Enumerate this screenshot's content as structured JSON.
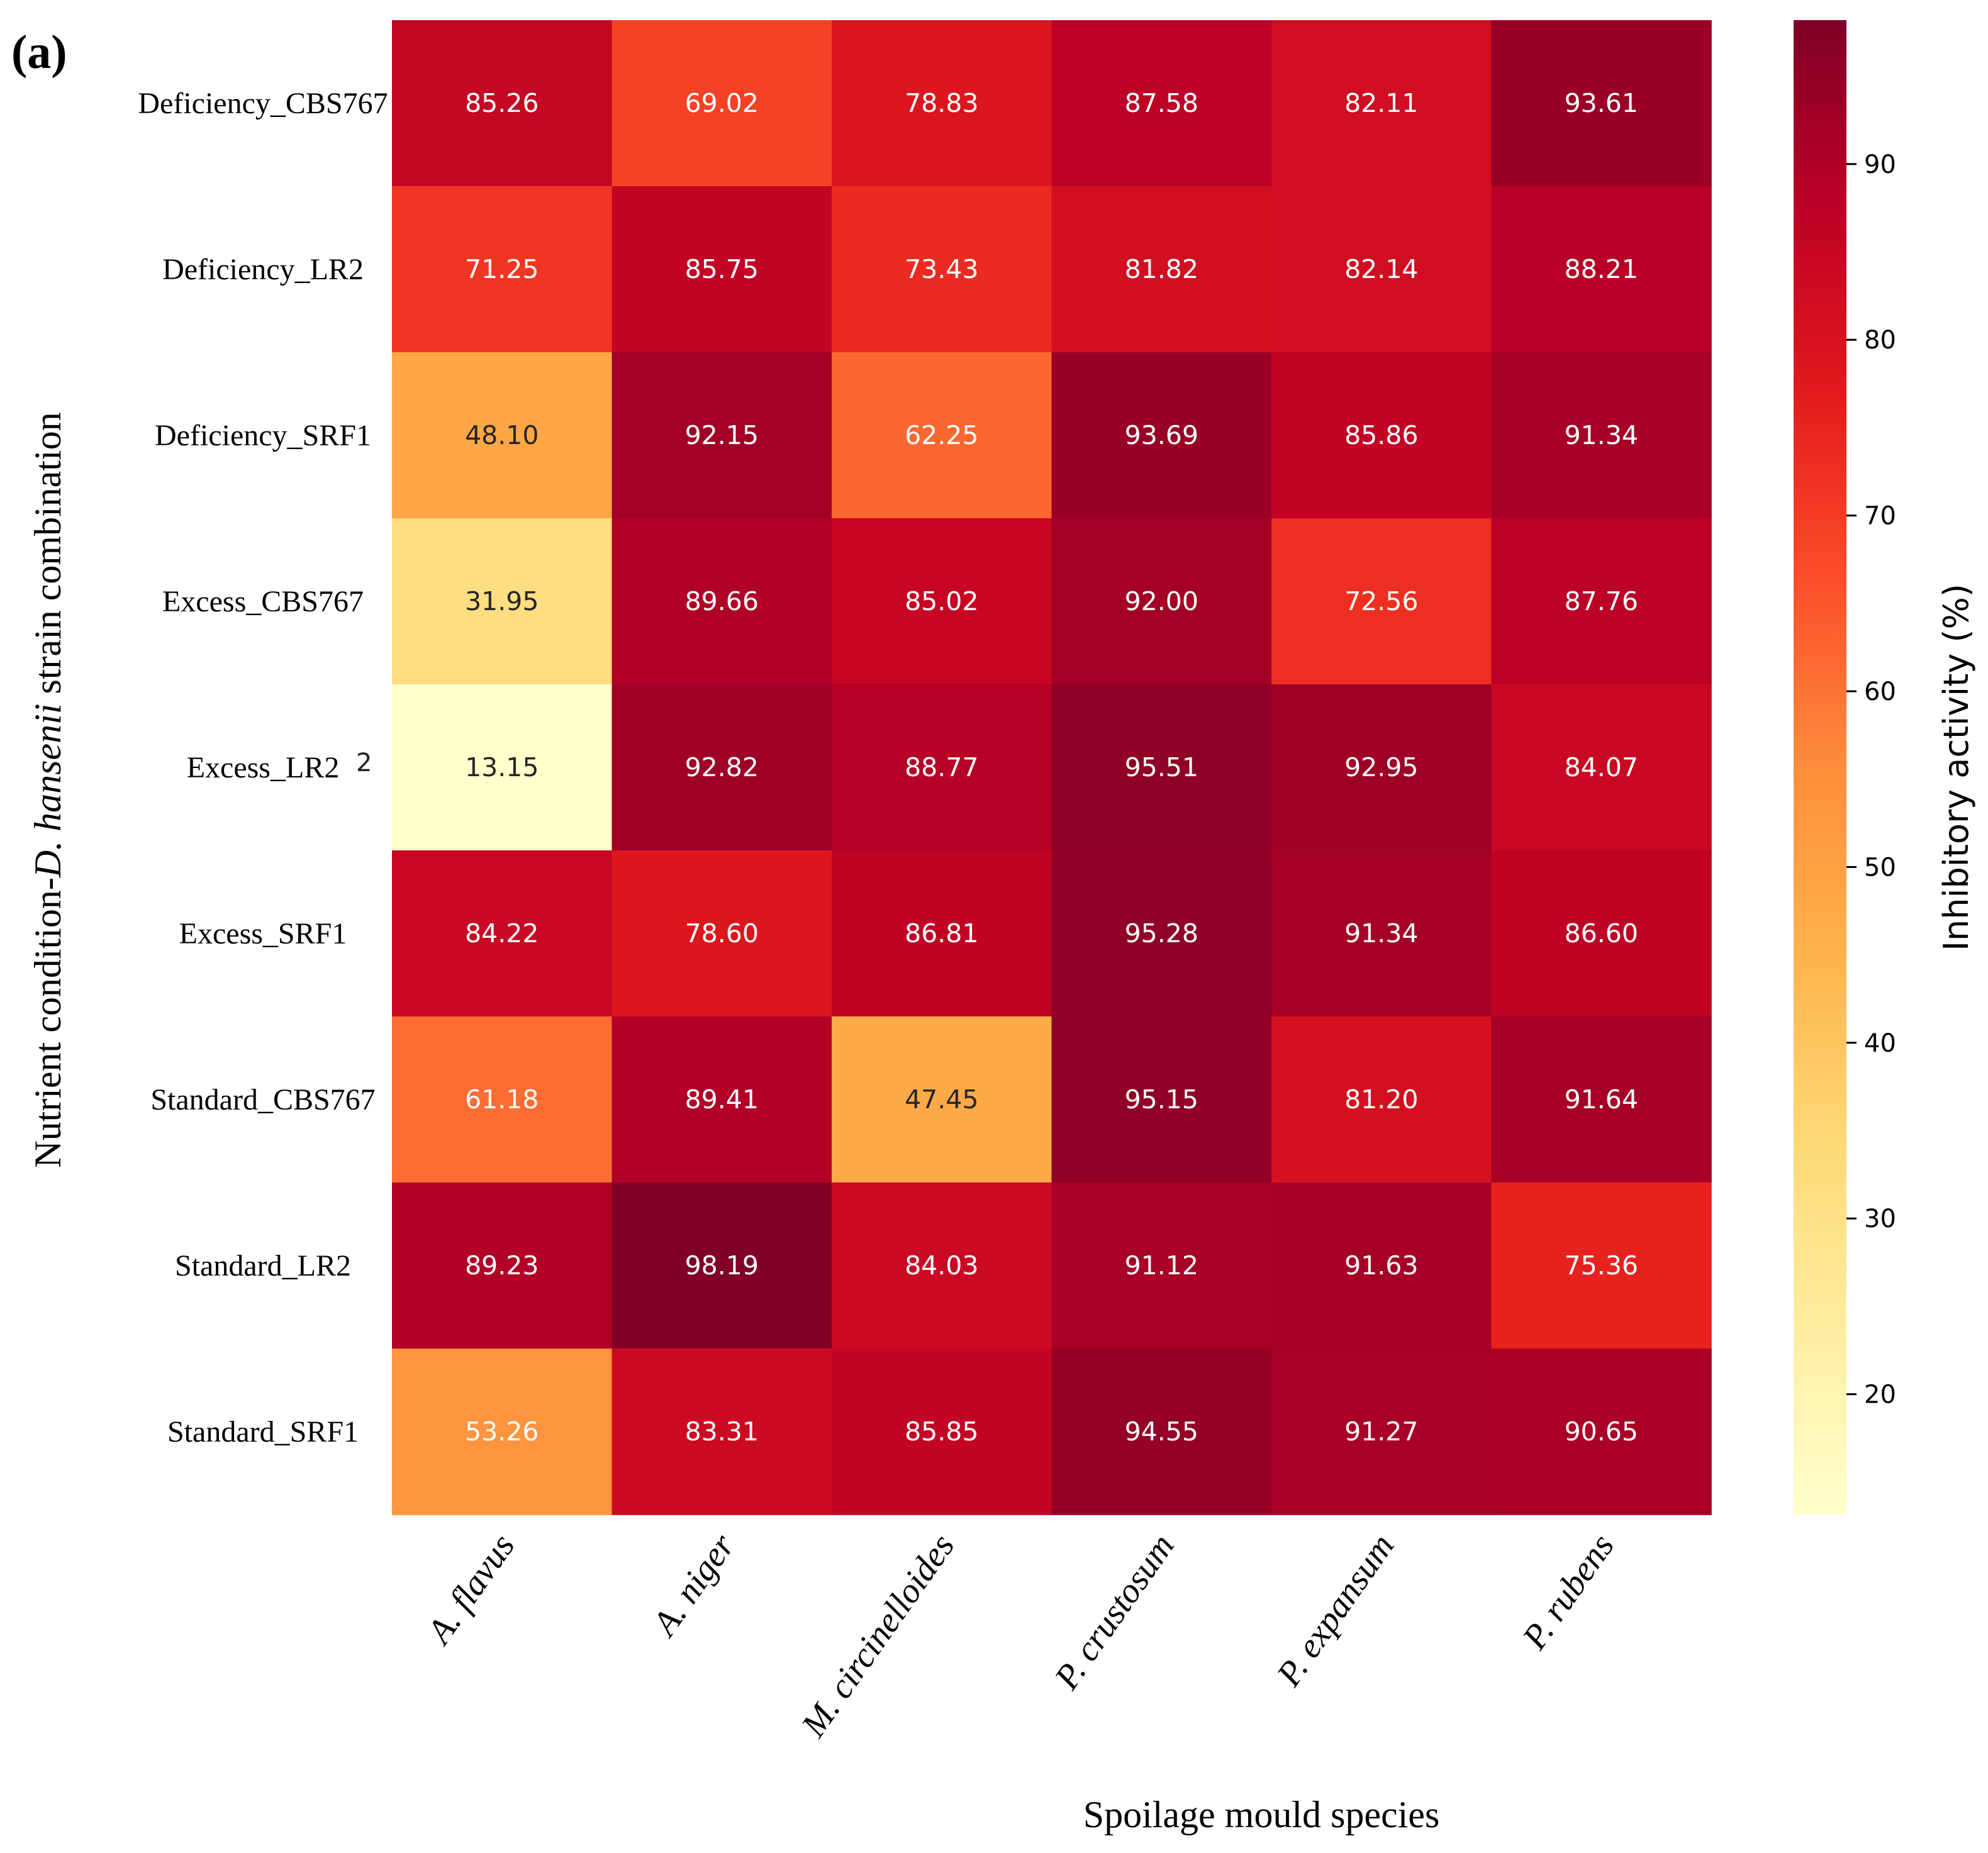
{
  "panel_label": "(a)",
  "stray_mark": "2",
  "chart_data": {
    "type": "heatmap",
    "title": "",
    "panel_label": "(a)",
    "xlabel": "Spoilage mould species",
    "ylabel": "Nutrient condition-D. hansenii strain combination",
    "ylabel_parts": [
      {
        "text": "Nutrient condition-",
        "italic": false
      },
      {
        "text": "D. hansenii",
        "italic": true
      },
      {
        "text": " strain combination",
        "italic": false
      }
    ],
    "columns": [
      "A. flavus",
      "A. niger",
      "M. circinelloides",
      "P. crustosum",
      "P. expansum",
      "P. rubens"
    ],
    "rows": [
      "Deficiency_CBS767",
      "Deficiency_LR2",
      "Deficiency_SRF1",
      "Excess_CBS767",
      "Excess_LR2",
      "Excess_SRF1",
      "Standard_CBS767",
      "Standard_LR2",
      "Standard_SRF1"
    ],
    "values": [
      [
        85.26,
        69.02,
        78.83,
        87.58,
        82.11,
        93.61
      ],
      [
        71.25,
        85.75,
        73.43,
        81.82,
        82.14,
        88.21
      ],
      [
        48.1,
        92.15,
        62.25,
        93.69,
        85.86,
        91.34
      ],
      [
        31.95,
        89.66,
        85.02,
        92.0,
        72.56,
        87.76
      ],
      [
        13.15,
        92.82,
        88.77,
        95.51,
        92.95,
        84.07
      ],
      [
        84.22,
        78.6,
        86.81,
        95.28,
        91.34,
        86.6
      ],
      [
        61.18,
        89.41,
        47.45,
        95.15,
        81.2,
        91.64
      ],
      [
        89.23,
        98.19,
        84.03,
        91.12,
        91.63,
        75.36
      ],
      [
        53.26,
        83.31,
        85.85,
        94.55,
        91.27,
        90.65
      ]
    ],
    "value_format_decimals": 2,
    "colorbar": {
      "label": "Inhibitory activity (%)",
      "min": 13.15,
      "max": 98.19,
      "ticks": [
        20,
        30,
        40,
        50,
        60,
        70,
        80,
        90
      ],
      "colormap": "YlOrRd",
      "colormap_stops": [
        "#ffffcc",
        "#ffeda0",
        "#fed976",
        "#feb24c",
        "#fd8d3c",
        "#fc4e2a",
        "#e31a1c",
        "#bd0026",
        "#800026"
      ]
    }
  }
}
